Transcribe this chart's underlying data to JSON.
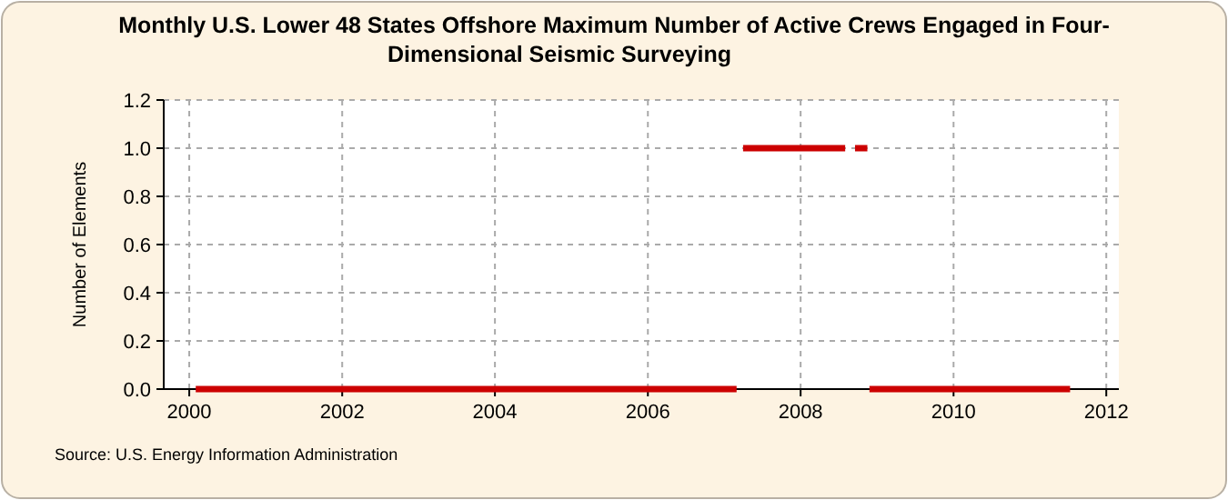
{
  "chart_data": {
    "type": "line",
    "title": "Monthly U.S. Lower 48 States Offshore Maximum Number of Active Crews Engaged in Four-Dimensional Seismic Surveying",
    "ylabel": "Number of Elements",
    "series": [
      {
        "color": "#cc0000",
        "x": [
          "2000-02",
          "2007-03"
        ],
        "values": [
          0,
          0
        ]
      },
      {
        "color": "#cc0000",
        "x": [
          "2007-04",
          "2008-08"
        ],
        "values": [
          1,
          1
        ]
      },
      {
        "color": "#cc0000",
        "x": [
          "2008-09-17",
          "2008-11-15"
        ],
        "values": [
          1,
          1
        ]
      },
      {
        "color": "#cc0000",
        "x": [
          "2008-11-25",
          "2011-07-12"
        ],
        "values": [
          0,
          0
        ]
      }
    ],
    "xlim": [
      "1999-09",
      "2012-03"
    ],
    "xticks": [
      "2000",
      "2002",
      "2004",
      "2006",
      "2008",
      "2010",
      "2012"
    ],
    "ylim": [
      0,
      1.2
    ],
    "yticks": [
      {
        "value": 0,
        "label": "0.0"
      },
      {
        "value": 0.2,
        "label": "0.2"
      },
      {
        "value": 0.4,
        "label": "0.4"
      },
      {
        "value": 0.6,
        "label": "0.6"
      },
      {
        "value": 0.8,
        "label": "0.8"
      },
      {
        "value": 1,
        "label": "1.0"
      },
      {
        "value": 1.2,
        "label": "1.2"
      }
    ],
    "grid": true,
    "line_style": "solid",
    "marker": "none",
    "annotations": [
      "Source: U.S. Energy Information Administration"
    ]
  }
}
